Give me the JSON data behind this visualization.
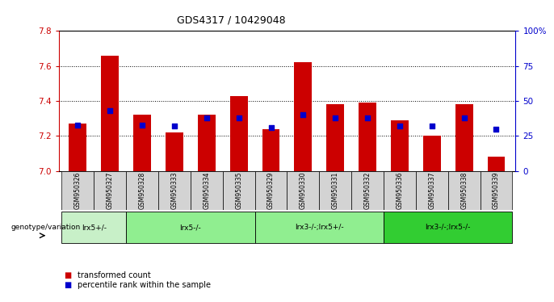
{
  "title": "GDS4317 / 10429048",
  "samples": [
    "GSM950326",
    "GSM950327",
    "GSM950328",
    "GSM950333",
    "GSM950334",
    "GSM950335",
    "GSM950329",
    "GSM950330",
    "GSM950331",
    "GSM950332",
    "GSM950336",
    "GSM950337",
    "GSM950338",
    "GSM950339"
  ],
  "red_values": [
    7.27,
    7.66,
    7.32,
    7.22,
    7.32,
    7.43,
    7.24,
    7.62,
    7.38,
    7.39,
    7.29,
    7.2,
    7.38,
    7.08
  ],
  "blue_values": [
    33,
    43,
    33,
    32,
    38,
    38,
    31,
    40,
    38,
    38,
    32,
    32,
    38,
    30
  ],
  "ylim_left": [
    7.0,
    7.8
  ],
  "ylim_right": [
    0,
    100
  ],
  "yticks_left": [
    7.0,
    7.2,
    7.4,
    7.6,
    7.8
  ],
  "yticks_right": [
    0,
    25,
    50,
    75,
    100
  ],
  "ytick_labels_right": [
    "0",
    "25",
    "50",
    "75",
    "100%"
  ],
  "grid_values": [
    7.2,
    7.4,
    7.6
  ],
  "groups": [
    {
      "label": "lrx5+/-",
      "start": 0,
      "end": 1,
      "color": "#c8f0c8"
    },
    {
      "label": "lrx5-/-",
      "start": 2,
      "end": 5,
      "color": "#90ee90"
    },
    {
      "label": "lrx3-/-;lrx5+/-",
      "start": 6,
      "end": 9,
      "color": "#90ee90"
    },
    {
      "label": "lrx3-/-;lrx5-/-",
      "start": 10,
      "end": 13,
      "color": "#32cd32"
    }
  ],
  "bar_color": "#cc0000",
  "dot_color": "#0000cc",
  "background_plot": "#ffffff",
  "label_color_left": "#cc0000",
  "label_color_right": "#0000cc",
  "legend_red": "transformed count",
  "legend_blue": "percentile rank within the sample",
  "genotype_label": "genotype/variation",
  "base_value": 7.0,
  "sample_bg": "#d3d3d3"
}
